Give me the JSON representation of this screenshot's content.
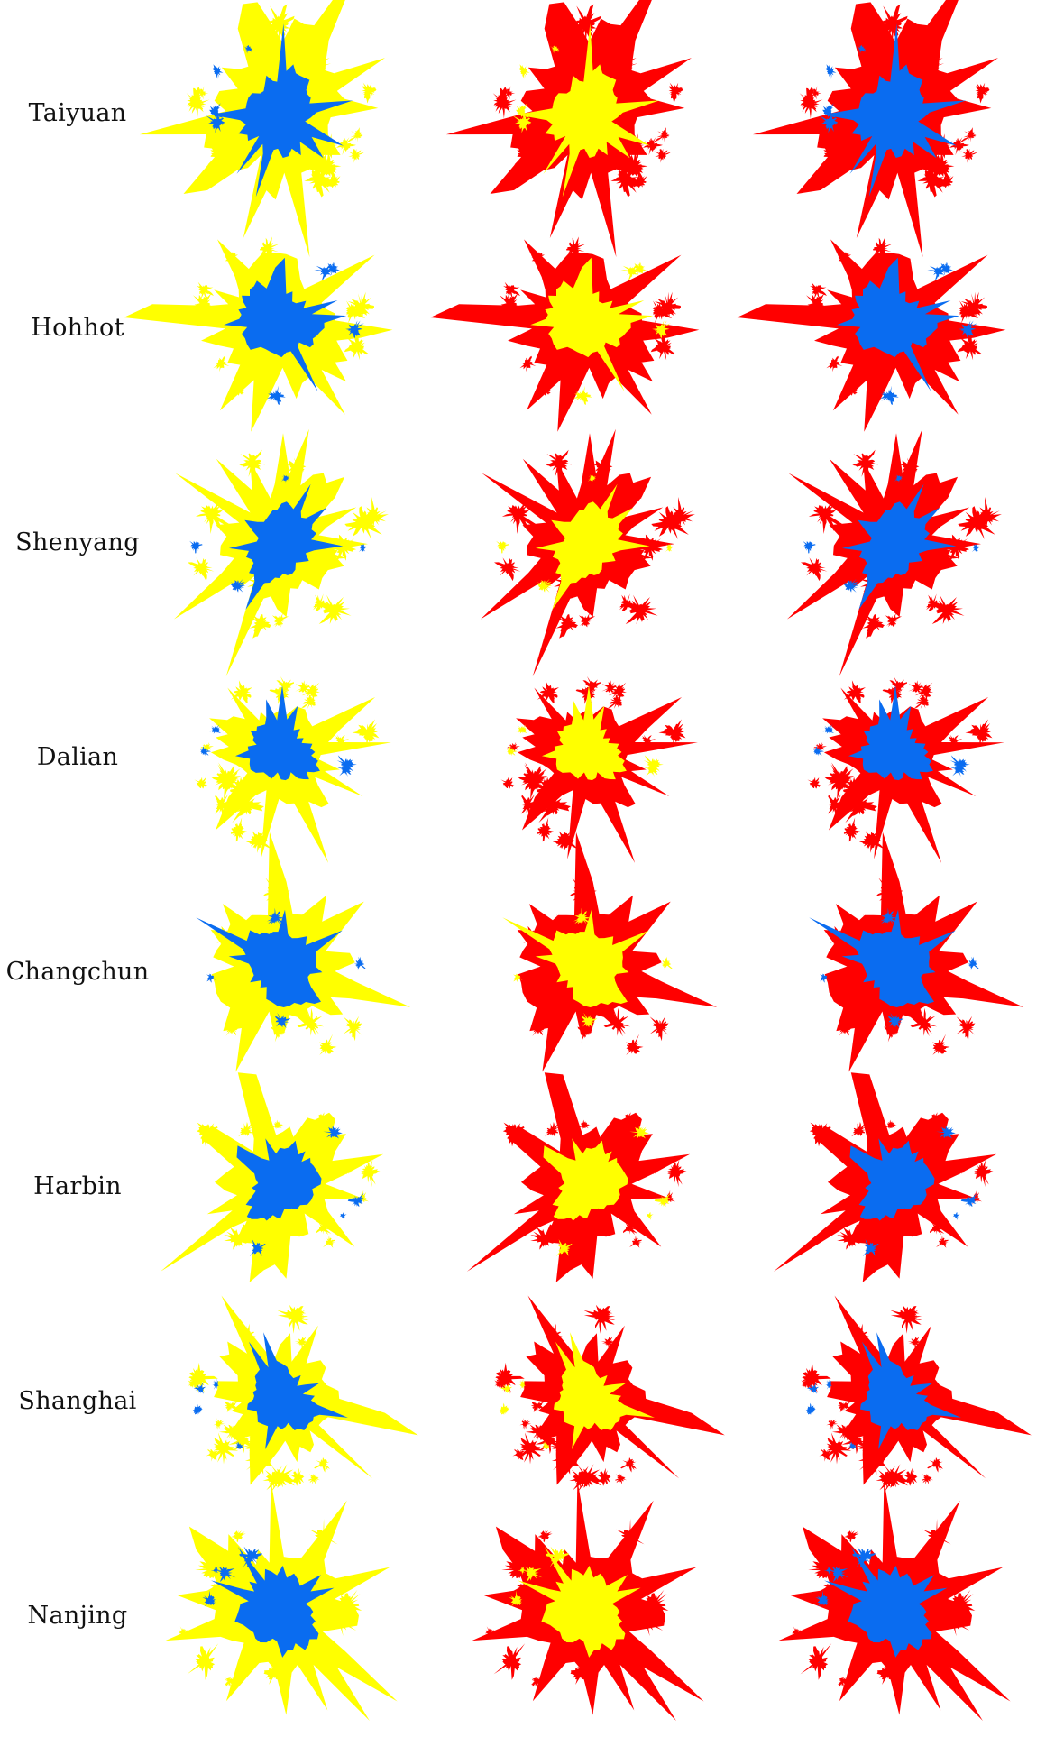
{
  "colors": {
    "blue": "#0a6cf0",
    "yellow": "#ffff00",
    "red": "#ff0000"
  },
  "cities": [
    {
      "name": "Taiyuan",
      "panels": [
        [
          "yellow",
          "blue"
        ],
        [
          "red",
          "yellow"
        ],
        [
          "red",
          "blue"
        ]
      ]
    },
    {
      "name": "Hohhot",
      "panels": [
        [
          "yellow",
          "blue"
        ],
        [
          "red",
          "yellow"
        ],
        [
          "red",
          "blue"
        ]
      ]
    },
    {
      "name": "Shenyang",
      "panels": [
        [
          "yellow",
          "blue"
        ],
        [
          "red",
          "yellow"
        ],
        [
          "red",
          "blue"
        ]
      ]
    },
    {
      "name": "Dalian",
      "panels": [
        [
          "yellow",
          "blue"
        ],
        [
          "red",
          "yellow"
        ],
        [
          "red",
          "blue"
        ]
      ]
    },
    {
      "name": "Changchun",
      "panels": [
        [
          "yellow",
          "blue"
        ],
        [
          "red",
          "yellow"
        ],
        [
          "red",
          "blue"
        ]
      ]
    },
    {
      "name": "Harbin",
      "panels": [
        [
          "yellow",
          "blue"
        ],
        [
          "red",
          "yellow"
        ],
        [
          "red",
          "blue"
        ]
      ]
    },
    {
      "name": "Shanghai",
      "panels": [
        [
          "yellow",
          "blue"
        ],
        [
          "red",
          "yellow"
        ],
        [
          "red",
          "blue"
        ]
      ]
    },
    {
      "name": "Nanjing",
      "panels": [
        [
          "yellow",
          "blue"
        ],
        [
          "red",
          "yellow"
        ],
        [
          "red",
          "blue"
        ]
      ]
    }
  ]
}
